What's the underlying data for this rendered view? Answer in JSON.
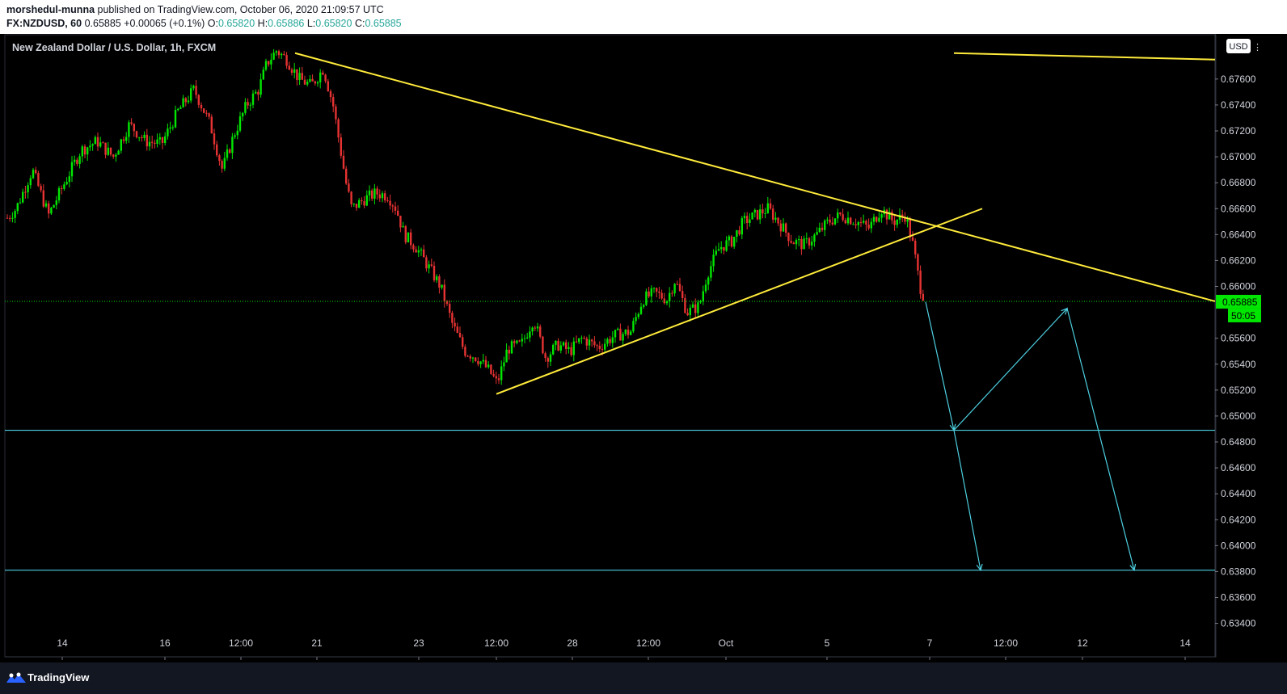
{
  "header": {
    "author": "morshedul-munna",
    "published_text": "published on TradingView.com, October 06, 2020 21:09:57 UTC",
    "symbol": "FX:NZDUSD, 60",
    "last": "0.65885",
    "change": "+0.00065 (+0.1%)",
    "o_label": "O:",
    "o_value": "0.65820",
    "h_label": "H:",
    "h_value": "0.65886",
    "l_label": "L:",
    "l_value": "0.65820",
    "c_label": "C:",
    "c_value": "0.65885"
  },
  "footer": {
    "brand": "TradingView"
  },
  "colors": {
    "background": "#000000",
    "bull": "#00e600",
    "bear": "#e63232",
    "trendline": "#ffeb3b",
    "level": "#4dd0e1",
    "projection": "#4dd0e1",
    "price_tag": "#00e600"
  },
  "chart_data": {
    "type": "candlestick",
    "title": "New Zealand Dollar / U.S. Dollar, 1h, FXCM",
    "currency_label": "USD",
    "ylim": [
      0.6327,
      0.6784
    ],
    "yticks": [
      "0.67600",
      "0.67400",
      "0.67200",
      "0.67000",
      "0.66800",
      "0.66600",
      "0.66400",
      "0.66200",
      "0.66000",
      "0.65600",
      "0.65400",
      "0.65200",
      "0.65000",
      "0.64800",
      "0.64600",
      "0.64400",
      "0.64200",
      "0.64000",
      "0.63800",
      "0.63600",
      "0.63400"
    ],
    "xticks": [
      "14",
      "16",
      "12:00",
      "21",
      "23",
      "12:00",
      "28",
      "12:00",
      "Oct",
      "5",
      "7",
      "12:00",
      "12",
      "14"
    ],
    "last_price": "0.65885",
    "countdown": "50:05",
    "price_path": [
      [
        0,
        0.6647
      ],
      [
        20,
        0.666
      ],
      [
        40,
        0.669
      ],
      [
        60,
        0.6655
      ],
      [
        80,
        0.668
      ],
      [
        100,
        0.6705
      ],
      [
        120,
        0.6712
      ],
      [
        140,
        0.67
      ],
      [
        160,
        0.6725
      ],
      [
        180,
        0.6712
      ],
      [
        200,
        0.671
      ],
      [
        220,
        0.6735
      ],
      [
        240,
        0.6752
      ],
      [
        260,
        0.6725
      ],
      [
        275,
        0.669
      ],
      [
        290,
        0.6718
      ],
      [
        305,
        0.674
      ],
      [
        320,
        0.6752
      ],
      [
        330,
        0.6772
      ],
      [
        342,
        0.6782
      ],
      [
        355,
        0.6775
      ],
      [
        370,
        0.676
      ],
      [
        385,
        0.6755
      ],
      [
        400,
        0.6768
      ],
      [
        412,
        0.674
      ],
      [
        420,
        0.671
      ],
      [
        428,
        0.668
      ],
      [
        435,
        0.666
      ],
      [
        450,
        0.6667
      ],
      [
        465,
        0.6672
      ],
      [
        480,
        0.667
      ],
      [
        490,
        0.666
      ],
      [
        500,
        0.664
      ],
      [
        515,
        0.663
      ],
      [
        530,
        0.6615
      ],
      [
        545,
        0.66
      ],
      [
        560,
        0.657
      ],
      [
        575,
        0.655
      ],
      [
        590,
        0.6545
      ],
      [
        605,
        0.6535
      ],
      [
        615,
        0.6525
      ],
      [
        628,
        0.6552
      ],
      [
        645,
        0.6555
      ],
      [
        660,
        0.6575
      ],
      [
        675,
        0.6545
      ],
      [
        690,
        0.6555
      ],
      [
        705,
        0.655
      ],
      [
        720,
        0.656
      ],
      [
        740,
        0.6553
      ],
      [
        760,
        0.6562
      ],
      [
        780,
        0.6565
      ],
      [
        795,
        0.659
      ],
      [
        810,
        0.6595
      ],
      [
        825,
        0.659
      ],
      [
        835,
        0.6605
      ],
      [
        850,
        0.658
      ],
      [
        865,
        0.6585
      ],
      [
        875,
        0.661
      ],
      [
        890,
        0.663
      ],
      [
        905,
        0.6635
      ],
      [
        920,
        0.665
      ],
      [
        935,
        0.6655
      ],
      [
        950,
        0.666
      ],
      [
        965,
        0.6648
      ],
      [
        980,
        0.6635
      ],
      [
        995,
        0.6632
      ],
      [
        1010,
        0.664
      ],
      [
        1025,
        0.665
      ],
      [
        1040,
        0.6655
      ],
      [
        1060,
        0.665
      ],
      [
        1075,
        0.6645
      ],
      [
        1090,
        0.666
      ],
      [
        1105,
        0.665
      ],
      [
        1120,
        0.6655
      ],
      [
        1130,
        0.663
      ],
      [
        1138,
        0.66
      ],
      [
        1145,
        0.65885
      ]
    ],
    "trendlines": [
      {
        "name": "",
        "points": [
          [
            365,
            0.678
          ],
          [
            1503,
            0.65885
          ]
        ]
      },
      {
        "name": "",
        "points": [
          [
            614,
            0.6517
          ],
          [
            1215,
            0.666
          ]
        ]
      },
      {
        "name": "",
        "points": [
          [
            1180,
            0.678
          ],
          [
            1503,
            0.6775
          ]
        ]
      }
    ],
    "levels": [
      0.6489,
      0.6381
    ],
    "projection": [
      [
        1145,
        0.6588
      ],
      [
        1180,
        0.6489
      ],
      [
        1320,
        0.6583
      ],
      [
        1403,
        0.6381
      ]
    ],
    "projection2": [
      [
        1180,
        0.6489
      ],
      [
        1213,
        0.6381
      ]
    ]
  }
}
